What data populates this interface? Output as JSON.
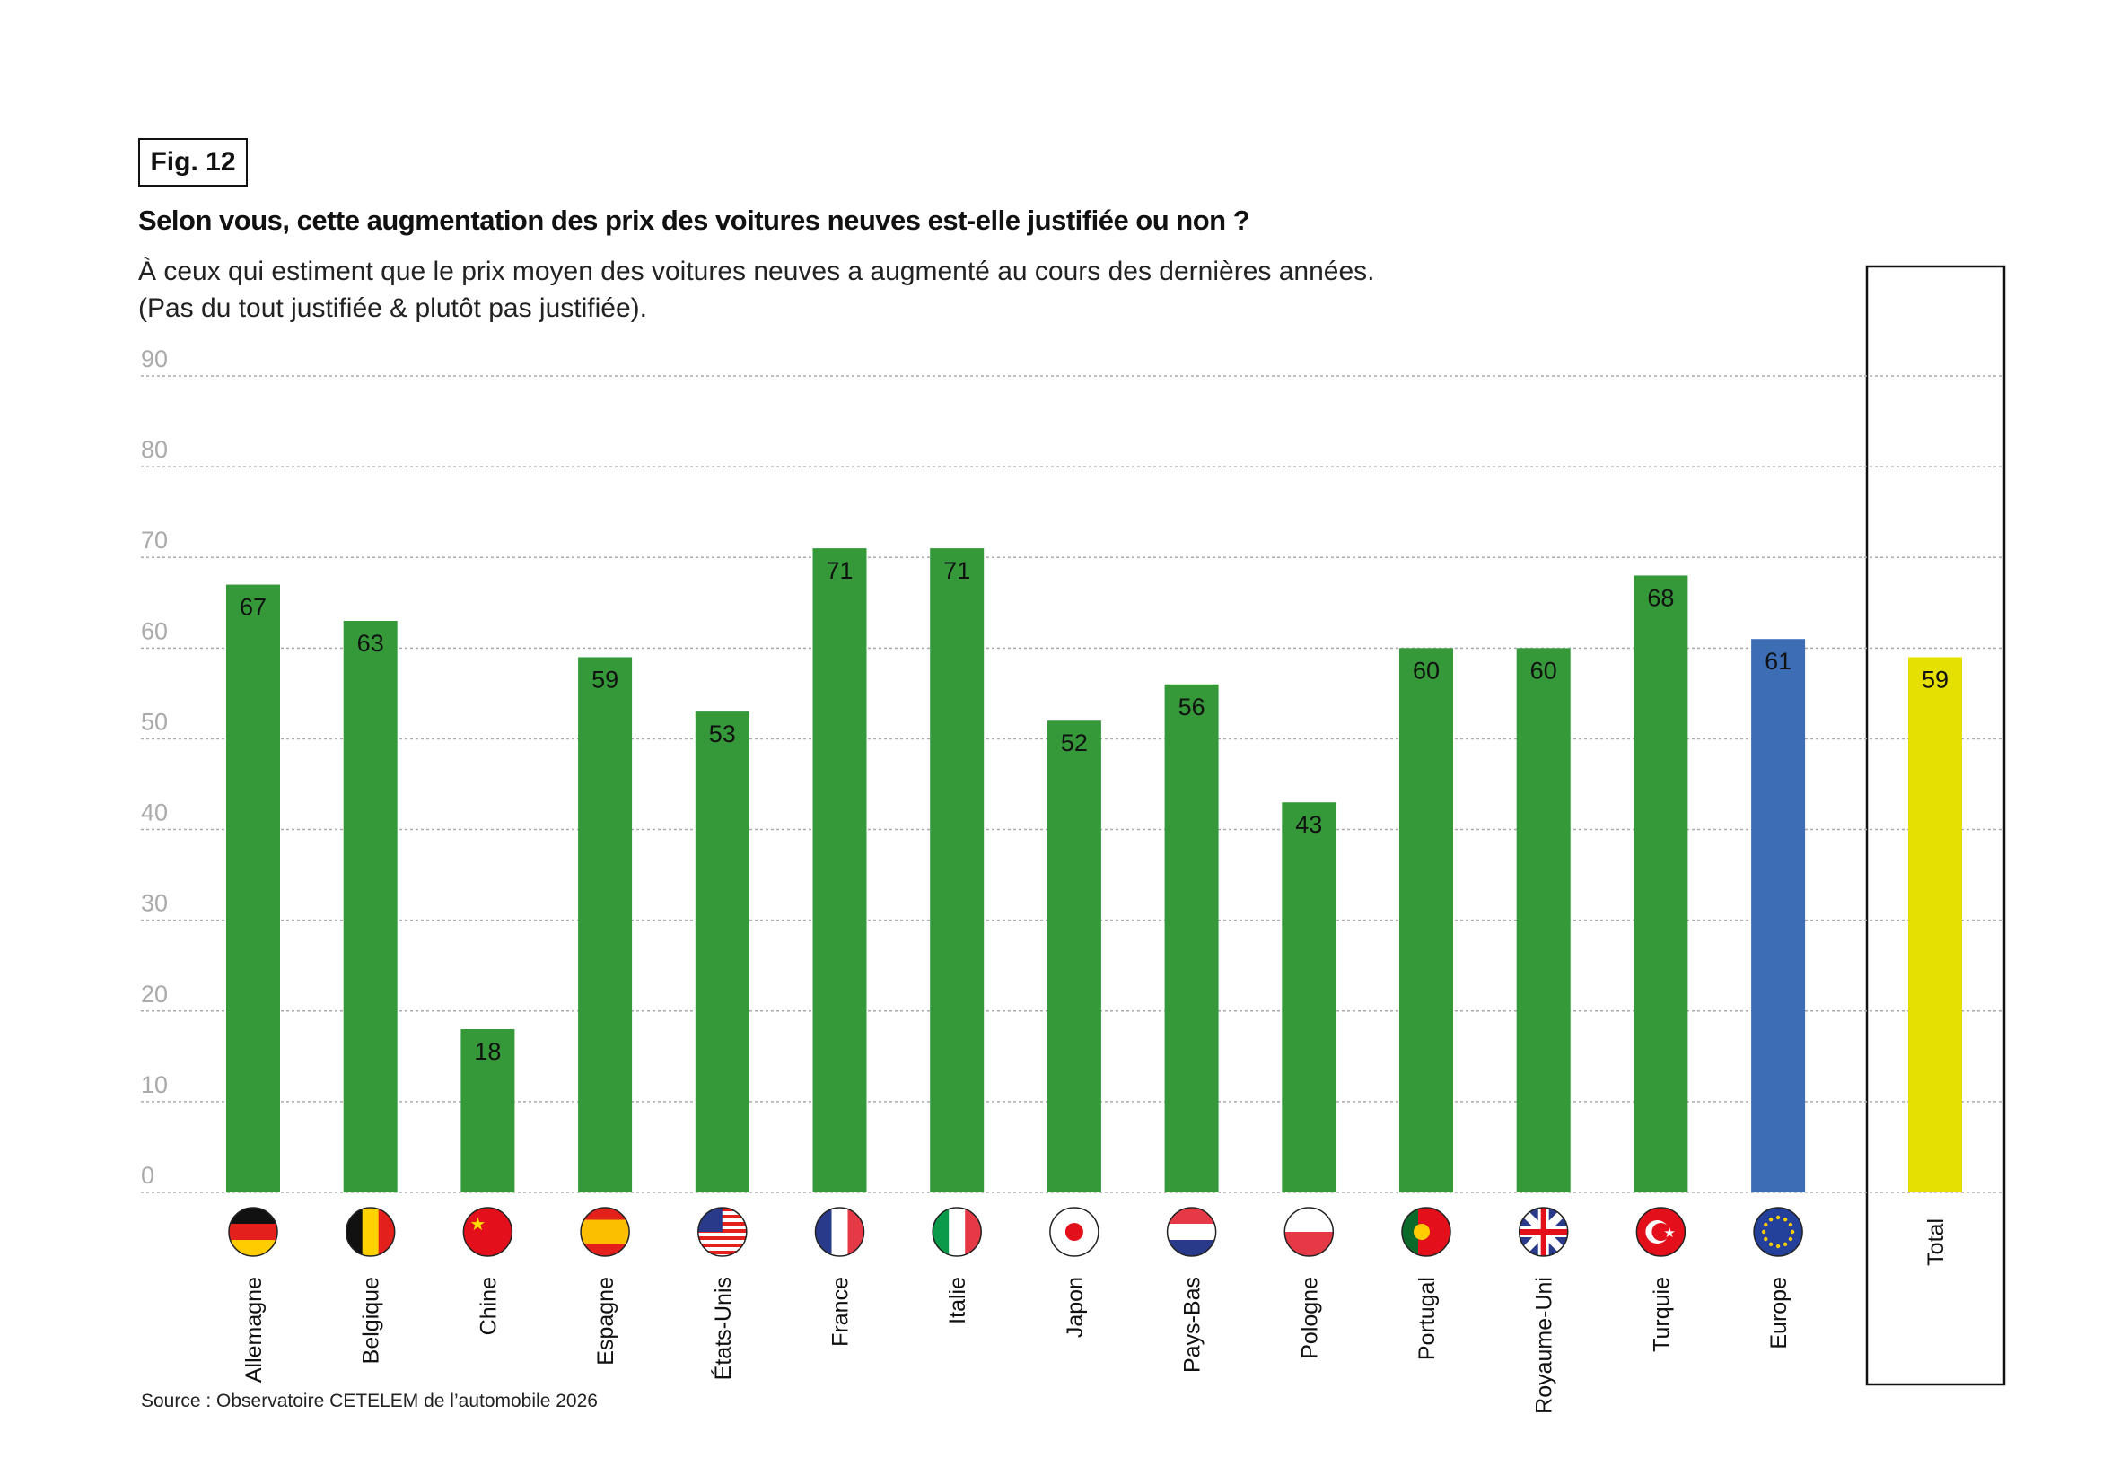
{
  "figure_label": "Fig. 12",
  "title": "Selon vous, cette augmentation des prix des voitures neuves est-elle justifiée ou non ?",
  "subtitle_line1": "À ceux qui estiment que le prix moyen des voitures neuves a augmenté au cours des dernières années.",
  "subtitle_line2": "(Pas du tout justifiée & plutôt pas justifiée).",
  "source": "Source : Observatoire CETELEM de l’automobile 2026",
  "colors": {
    "country": "#35993a",
    "europe": "#3d6db5",
    "total": "#e6e000",
    "grid": "#aaaaaa",
    "tick": "#aaaaaa"
  },
  "chart_data": {
    "type": "bar",
    "title": "Selon vous, cette augmentation des prix des voitures neuves est-elle justifiée ou non ?",
    "xlabel": "",
    "ylabel": "",
    "ylim": [
      0,
      90
    ],
    "yticks": [
      0,
      10,
      20,
      30,
      40,
      50,
      60,
      70,
      80,
      90
    ],
    "grid": true,
    "categories": [
      "Allemagne",
      "Belgique",
      "Chine",
      "Espagne",
      "États-Unis",
      "France",
      "Italie",
      "Japon",
      "Pays-Bas",
      "Pologne",
      "Portugal",
      "Royaume-Uni",
      "Turquie",
      "Europe",
      "Total"
    ],
    "values": [
      67,
      63,
      18,
      59,
      53,
      71,
      71,
      52,
      56,
      43,
      60,
      60,
      68,
      61,
      59
    ],
    "flags": [
      "de-flag-icon",
      "be-flag-icon",
      "cn-flag-icon",
      "es-flag-icon",
      "us-flag-icon",
      "fr-flag-icon",
      "it-flag-icon",
      "jp-flag-icon",
      "nl-flag-icon",
      "pl-flag-icon",
      "pt-flag-icon",
      "gb-flag-icon",
      "tr-flag-icon",
      "eu-flag-icon",
      ""
    ]
  }
}
